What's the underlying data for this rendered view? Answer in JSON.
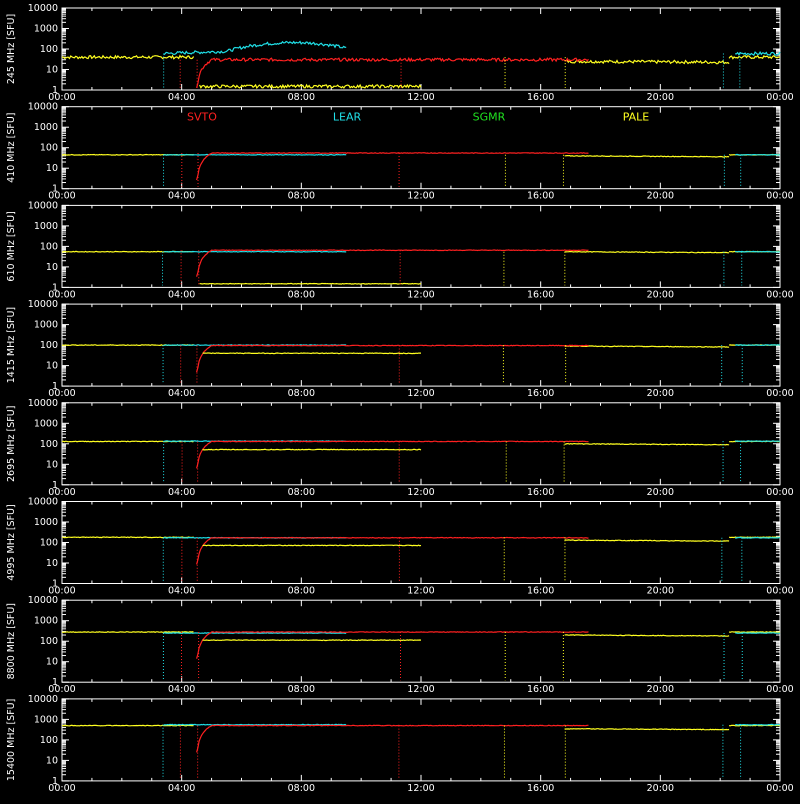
{
  "legend": [
    {
      "name": "SVTO",
      "color": "#ff2020"
    },
    {
      "name": "LEAR",
      "color": "#20e0e8"
    },
    {
      "name": "SGMR",
      "color": "#20e020"
    },
    {
      "name": "PALE",
      "color": "#ffff20"
    }
  ],
  "chart_data": {
    "type": "line",
    "grid": false,
    "legend_placement": "top, inside second panel",
    "x_ticks": [
      "00:00",
      "04:00",
      "08:00",
      "12:00",
      "16:00",
      "20:00",
      "00:00"
    ],
    "x_range_hours": [
      0,
      24
    ],
    "y_ticks": [
      "1",
      "10",
      "100",
      "1000",
      "10000"
    ],
    "y_scale": "log",
    "y_range": [
      1,
      10000
    ],
    "panels": [
      {
        "ylabel": "245 MHz [SFU]",
        "baselines": {
          "PALE": 40,
          "LEAR": 60,
          "SVTO": 30
        },
        "late_level": 25
      },
      {
        "ylabel": "410 MHz [SFU]",
        "baselines": {
          "PALE": 45,
          "LEAR": 45,
          "SVTO": 55
        },
        "late_level": 40
      },
      {
        "ylabel": "610 MHz [SFU]",
        "baselines": {
          "PALE": 55,
          "LEAR": 55,
          "SVTO": 65
        },
        "late_level": 55
      },
      {
        "ylabel": "1415 MHz [SFU]",
        "baselines": {
          "PALE": 100,
          "LEAR": 100,
          "SVTO": 95
        },
        "late_level": 90
      },
      {
        "ylabel": "2695 MHz [SFU]",
        "baselines": {
          "PALE": 130,
          "LEAR": 135,
          "SVTO": 130
        },
        "late_level": 100
      },
      {
        "ylabel": "4995 MHz [SFU]",
        "baselines": {
          "PALE": 180,
          "LEAR": 170,
          "SVTO": 170
        },
        "late_level": 130
      },
      {
        "ylabel": "8800 MHz [SFU]",
        "baselines": {
          "PALE": 280,
          "LEAR": 250,
          "SVTO": 280
        },
        "late_level": 200
      },
      {
        "ylabel": "15400 MHz [SFU]",
        "baselines": {
          "PALE": 500,
          "LEAR": 550,
          "SVTO": 500
        },
        "late_level": 350
      }
    ]
  }
}
